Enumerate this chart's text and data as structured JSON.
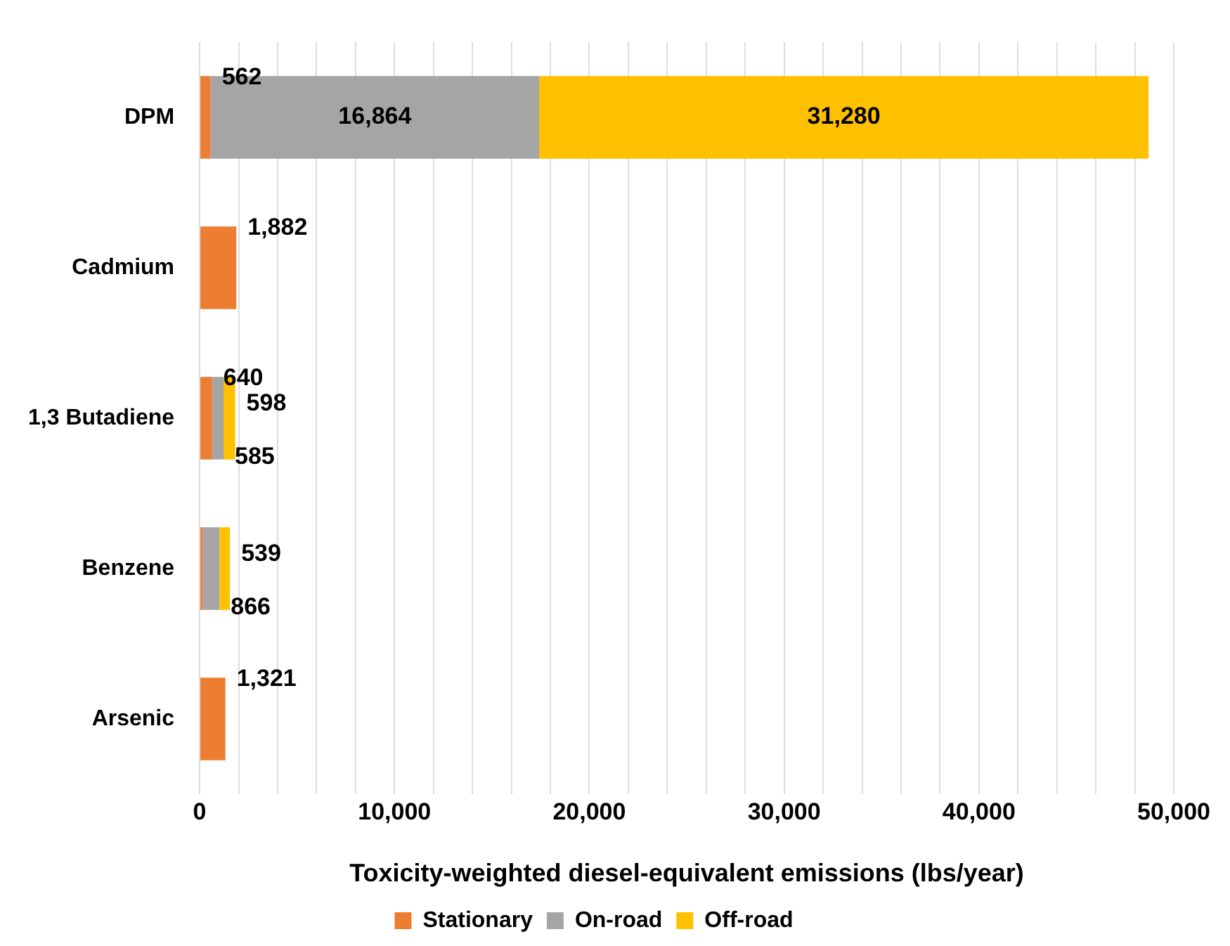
{
  "chart_data": {
    "type": "bar",
    "orientation": "horizontal",
    "stacked": true,
    "categories": [
      "DPM",
      "Cadmium",
      "1,3 Butadiene",
      "Benzene",
      "Arsenic"
    ],
    "series": [
      {
        "name": "Stationary",
        "color": "#ed7d31",
        "values": [
          562,
          1882,
          640,
          150,
          1321
        ],
        "value_labels": [
          "562",
          "1,882",
          "640",
          null,
          "1,321"
        ]
      },
      {
        "name": "On-road",
        "color": "#a5a5a5",
        "values": [
          16864,
          null,
          585,
          866,
          null
        ],
        "value_labels": [
          "16,864",
          null,
          "585",
          "866",
          null
        ]
      },
      {
        "name": "Off-road",
        "color": "#ffc000",
        "values": [
          31280,
          null,
          598,
          539,
          null
        ],
        "value_labels": [
          "31,280",
          null,
          "598",
          "539",
          null
        ]
      }
    ],
    "xlabel": "Toxicity-weighted diesel-equivalent emissions (lbs/year)",
    "xlim": [
      0,
      50000
    ],
    "xticks": [
      0,
      {
        "value": 2000,
        "label": null
      },
      {
        "value": 4000,
        "label": null
      },
      {
        "value": 6000,
        "label": null
      },
      {
        "value": 8000,
        "label": null
      },
      {
        "value": 10000,
        "label": "10,000"
      },
      {
        "value": 12000,
        "label": null
      },
      {
        "value": 14000,
        "label": null
      },
      {
        "value": 16000,
        "label": null
      },
      {
        "value": 18000,
        "label": null
      },
      {
        "value": 20000,
        "label": "20,000"
      },
      {
        "value": 22000,
        "label": null
      },
      {
        "value": 24000,
        "label": null
      },
      {
        "value": 26000,
        "label": null
      },
      {
        "value": 28000,
        "label": null
      },
      {
        "value": 30000,
        "label": "30,000"
      },
      {
        "value": 32000,
        "label": null
      },
      {
        "value": 34000,
        "label": null
      },
      {
        "value": 36000,
        "label": null
      },
      {
        "value": 38000,
        "label": null
      },
      {
        "value": 40000,
        "label": "40,000"
      },
      {
        "value": 42000,
        "label": null
      },
      {
        "value": 44000,
        "label": null
      },
      {
        "value": 46000,
        "label": null
      },
      {
        "value": 48000,
        "label": null
      },
      {
        "value": 50000,
        "label": "50,000"
      }
    ],
    "grid": "x",
    "legend": "bottom"
  }
}
